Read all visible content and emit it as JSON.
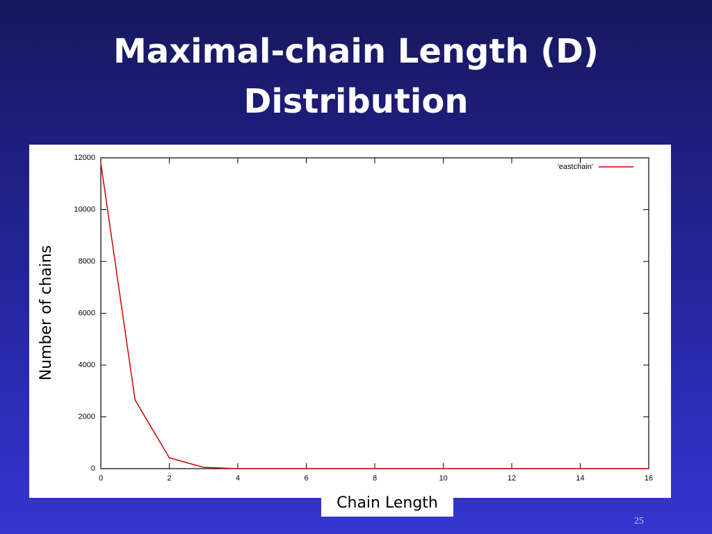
{
  "slide": {
    "page_number": "25"
  },
  "chart_data": {
    "type": "line",
    "title": "Maximal-chain Length (D) Distribution",
    "x_label": "Chain Length",
    "y_label": "Number of chains",
    "x": [
      0,
      1,
      2,
      3,
      4,
      5,
      6,
      7,
      8,
      9,
      10,
      11,
      12,
      13,
      14,
      15,
      16
    ],
    "series": [
      {
        "name": "'eastchain'",
        "color": "#cc0000",
        "values": [
          11800,
          2650,
          420,
          50,
          0,
          0,
          0,
          0,
          0,
          0,
          0,
          0,
          0,
          0,
          0,
          0,
          0
        ]
      }
    ],
    "xlim": [
      0,
      16
    ],
    "xticks": [
      0,
      2,
      4,
      6,
      8,
      10,
      12,
      14,
      16
    ],
    "ylim": [
      0,
      12000
    ],
    "yticks": [
      0,
      2000,
      4000,
      6000,
      8000,
      10000,
      12000
    ],
    "grid": false,
    "legend": "top-right"
  }
}
